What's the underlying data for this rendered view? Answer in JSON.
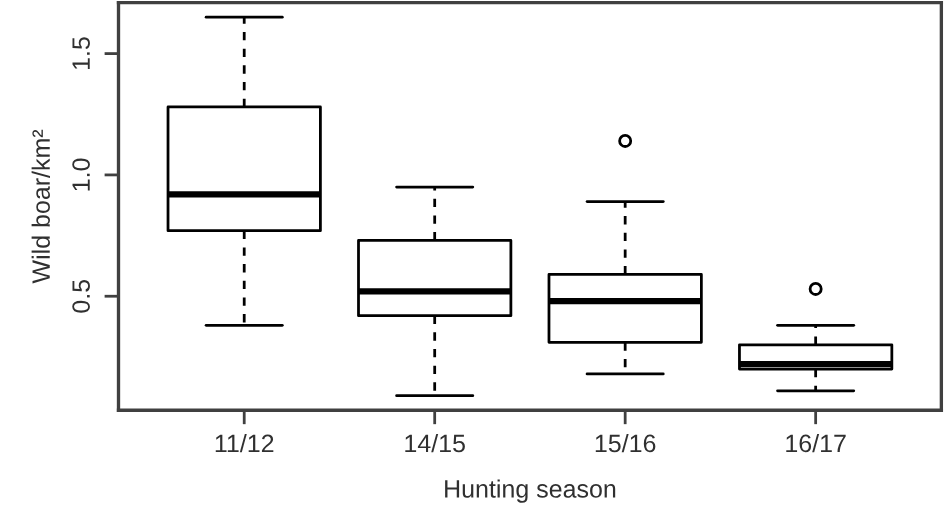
{
  "chart_data": {
    "type": "box",
    "xlabel": "Hunting season",
    "ylabel": "Wild boar/km²",
    "categories": [
      "11/12",
      "14/15",
      "15/16",
      "16/17"
    ],
    "boxes": [
      {
        "low": 0.38,
        "q1": 0.77,
        "median": 0.92,
        "q3": 1.28,
        "high": 1.65
      },
      {
        "low": 0.09,
        "q1": 0.42,
        "median": 0.52,
        "q3": 0.73,
        "high": 0.95
      },
      {
        "low": 0.18,
        "q1": 0.31,
        "median": 0.48,
        "q3": 0.59,
        "high": 0.89,
        "outliers": [
          1.14
        ]
      },
      {
        "low": 0.11,
        "q1": 0.2,
        "median": 0.22,
        "q3": 0.3,
        "high": 0.38,
        "outliers": [
          0.53
        ]
      }
    ],
    "ylim": [
      0.03,
      1.71
    ],
    "yticks": [
      0.5,
      {
        "value": 1,
        "label": "1.0"
      },
      1.5
    ],
    "grid": false
  }
}
